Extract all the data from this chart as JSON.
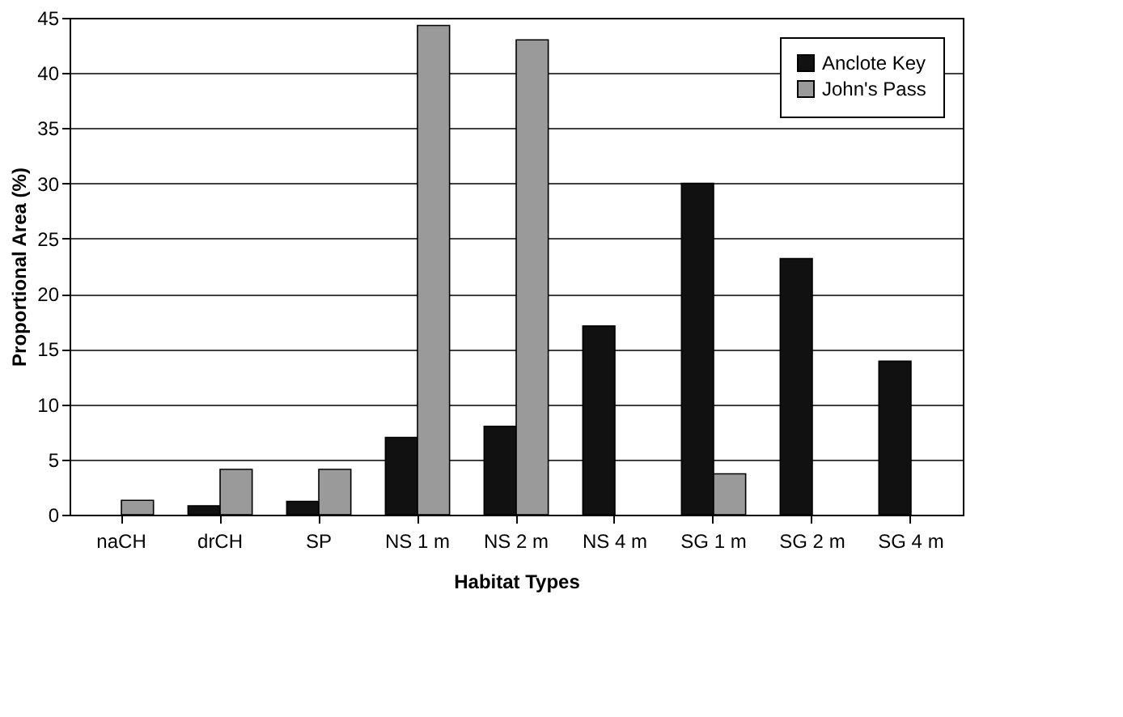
{
  "chart_data": {
    "type": "bar",
    "xlabel": "Habitat Types",
    "ylabel": "Proportional Area (%)",
    "categories": [
      "naCH",
      "drCH",
      "SP",
      "NS\n1 m",
      "NS\n2 m",
      "NS\n4 m",
      "SG\n1 m",
      "SG\n2 m",
      "SG\n4 m"
    ],
    "series": [
      {
        "name": "Anclote Key",
        "color": "#111111",
        "values": [
          null,
          0.8,
          1.2,
          7.0,
          8.0,
          17.1,
          30.0,
          23.2,
          13.9
        ]
      },
      {
        "name": "John's Pass",
        "color": "#9a9a9a",
        "values": [
          1.3,
          4.1,
          4.1,
          44.3,
          43.0,
          null,
          3.7,
          null,
          null
        ]
      }
    ],
    "ylim": [
      0,
      45
    ],
    "yticks": [
      0,
      5,
      10,
      15,
      20,
      25,
      30,
      35,
      40,
      45
    ],
    "grid": "y",
    "legend": "top right"
  }
}
